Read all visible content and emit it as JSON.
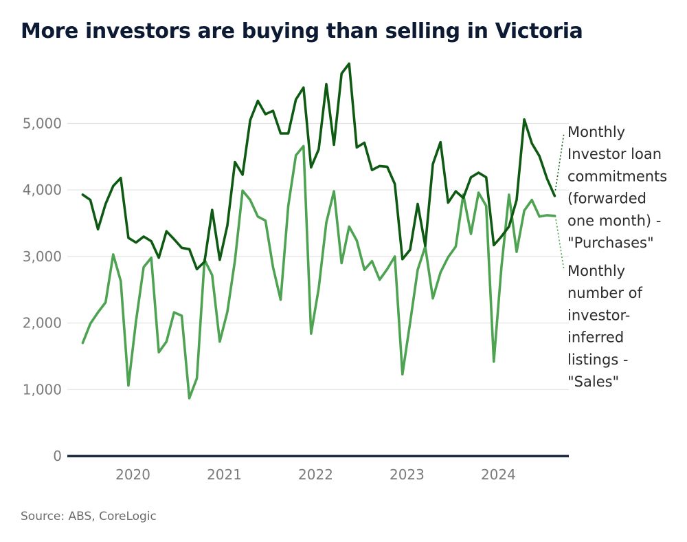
{
  "title": "More investors are buying than selling in Victoria",
  "source": "Source: ABS, CoreLogic",
  "colors": {
    "purchases": "#0e5a12",
    "sales": "#4ea352",
    "baseline": "#0c1a33",
    "grid": "#e3e3e3"
  },
  "chart_data": {
    "type": "line",
    "title": "More investors are buying than selling in Victoria",
    "xlabel": "",
    "ylabel": "",
    "ylim": [
      0,
      6000
    ],
    "yticks": [
      0,
      1000,
      2000,
      3000,
      4000,
      5000
    ],
    "ytick_labels": [
      "0",
      "1,000",
      "2,000",
      "3,000",
      "4,000",
      "5,000"
    ],
    "xticks": [
      2020,
      2021,
      2022,
      2023,
      2024
    ],
    "xtick_labels": [
      "2020",
      "2021",
      "2022",
      "2023",
      "2024"
    ],
    "grid": true,
    "legend": "direct labels at right",
    "series": [
      {
        "name": "Monthly Investor loan commitments (forwarded one month) - \"Purchases\"",
        "label_lines": [
          "Monthly",
          "Investor loan",
          "commitments",
          "(forwarded",
          "one month) -",
          "\"Purchases\""
        ],
        "x": [
          "2019-06",
          "2019-07",
          "2019-08",
          "2019-09",
          "2019-10",
          "2019-11",
          "2019-12",
          "2020-01",
          "2020-02",
          "2020-03",
          "2020-04",
          "2020-05",
          "2020-06",
          "2020-07",
          "2020-08",
          "2020-09",
          "2020-10",
          "2020-11",
          "2020-12",
          "2021-01",
          "2021-02",
          "2021-03",
          "2021-04",
          "2021-05",
          "2021-06",
          "2021-07",
          "2021-08",
          "2021-09",
          "2021-10",
          "2021-11",
          "2021-12",
          "2022-01",
          "2022-02",
          "2022-03",
          "2022-04",
          "2022-05",
          "2022-06",
          "2022-07",
          "2022-08",
          "2022-09",
          "2022-10",
          "2022-11",
          "2022-12",
          "2023-01",
          "2023-02",
          "2023-03",
          "2023-04",
          "2023-05",
          "2023-06",
          "2023-07",
          "2023-08",
          "2023-09",
          "2023-10",
          "2023-11",
          "2023-12",
          "2024-01",
          "2024-02",
          "2024-03",
          "2024-04",
          "2024-05",
          "2024-06",
          "2024-07",
          "2024-08"
        ],
        "values": [
          3930,
          3850,
          3410,
          3790,
          4060,
          4180,
          3280,
          3210,
          3300,
          3230,
          2980,
          3380,
          3260,
          3130,
          3110,
          2810,
          2920,
          3700,
          2950,
          3470,
          4420,
          4230,
          5050,
          5340,
          5140,
          5190,
          4850,
          4850,
          5360,
          5540,
          4340,
          4610,
          5590,
          4680,
          5750,
          5900,
          4640,
          4710,
          4300,
          4360,
          4350,
          4090,
          2960,
          3100,
          3790,
          3160,
          4390,
          4720,
          3810,
          3980,
          3880,
          4190,
          4260,
          4190,
          3170,
          3300,
          3450,
          3850,
          5060,
          4700,
          4510,
          4170,
          3910
        ]
      },
      {
        "name": "Monthly number of investor-inferred listings - \"Sales\"",
        "label_lines": [
          "Monthly",
          "number of",
          "investor-",
          "inferred",
          "listings -",
          "\"Sales\""
        ],
        "x": [
          "2019-06",
          "2019-07",
          "2019-08",
          "2019-09",
          "2019-10",
          "2019-11",
          "2019-12",
          "2020-01",
          "2020-02",
          "2020-03",
          "2020-04",
          "2020-05",
          "2020-06",
          "2020-07",
          "2020-08",
          "2020-09",
          "2020-10",
          "2020-11",
          "2020-12",
          "2021-01",
          "2021-02",
          "2021-03",
          "2021-04",
          "2021-05",
          "2021-06",
          "2021-07",
          "2021-08",
          "2021-09",
          "2021-10",
          "2021-11",
          "2021-12",
          "2022-01",
          "2022-02",
          "2022-03",
          "2022-04",
          "2022-05",
          "2022-06",
          "2022-07",
          "2022-08",
          "2022-09",
          "2022-10",
          "2022-11",
          "2022-12",
          "2023-01",
          "2023-02",
          "2023-03",
          "2023-04",
          "2023-05",
          "2023-06",
          "2023-07",
          "2023-08",
          "2023-09",
          "2023-10",
          "2023-11",
          "2023-12",
          "2024-01",
          "2024-02",
          "2024-03",
          "2024-04",
          "2024-05",
          "2024-06",
          "2024-07",
          "2024-08"
        ],
        "values": [
          1700,
          1990,
          2160,
          2310,
          3030,
          2630,
          1060,
          2030,
          2840,
          2980,
          1560,
          1720,
          2160,
          2110,
          870,
          1170,
          2950,
          2720,
          1720,
          2170,
          2940,
          3990,
          3850,
          3600,
          3540,
          2840,
          2350,
          3760,
          4520,
          4660,
          1840,
          2520,
          3510,
          3980,
          2900,
          3450,
          3240,
          2800,
          2930,
          2650,
          2810,
          3000,
          1230,
          2000,
          2800,
          3150,
          2370,
          2760,
          2990,
          3150,
          3930,
          3340,
          3960,
          3760,
          1420,
          2830,
          3930,
          3070,
          3690,
          3850,
          3600,
          3620,
          3610
        ]
      }
    ]
  }
}
